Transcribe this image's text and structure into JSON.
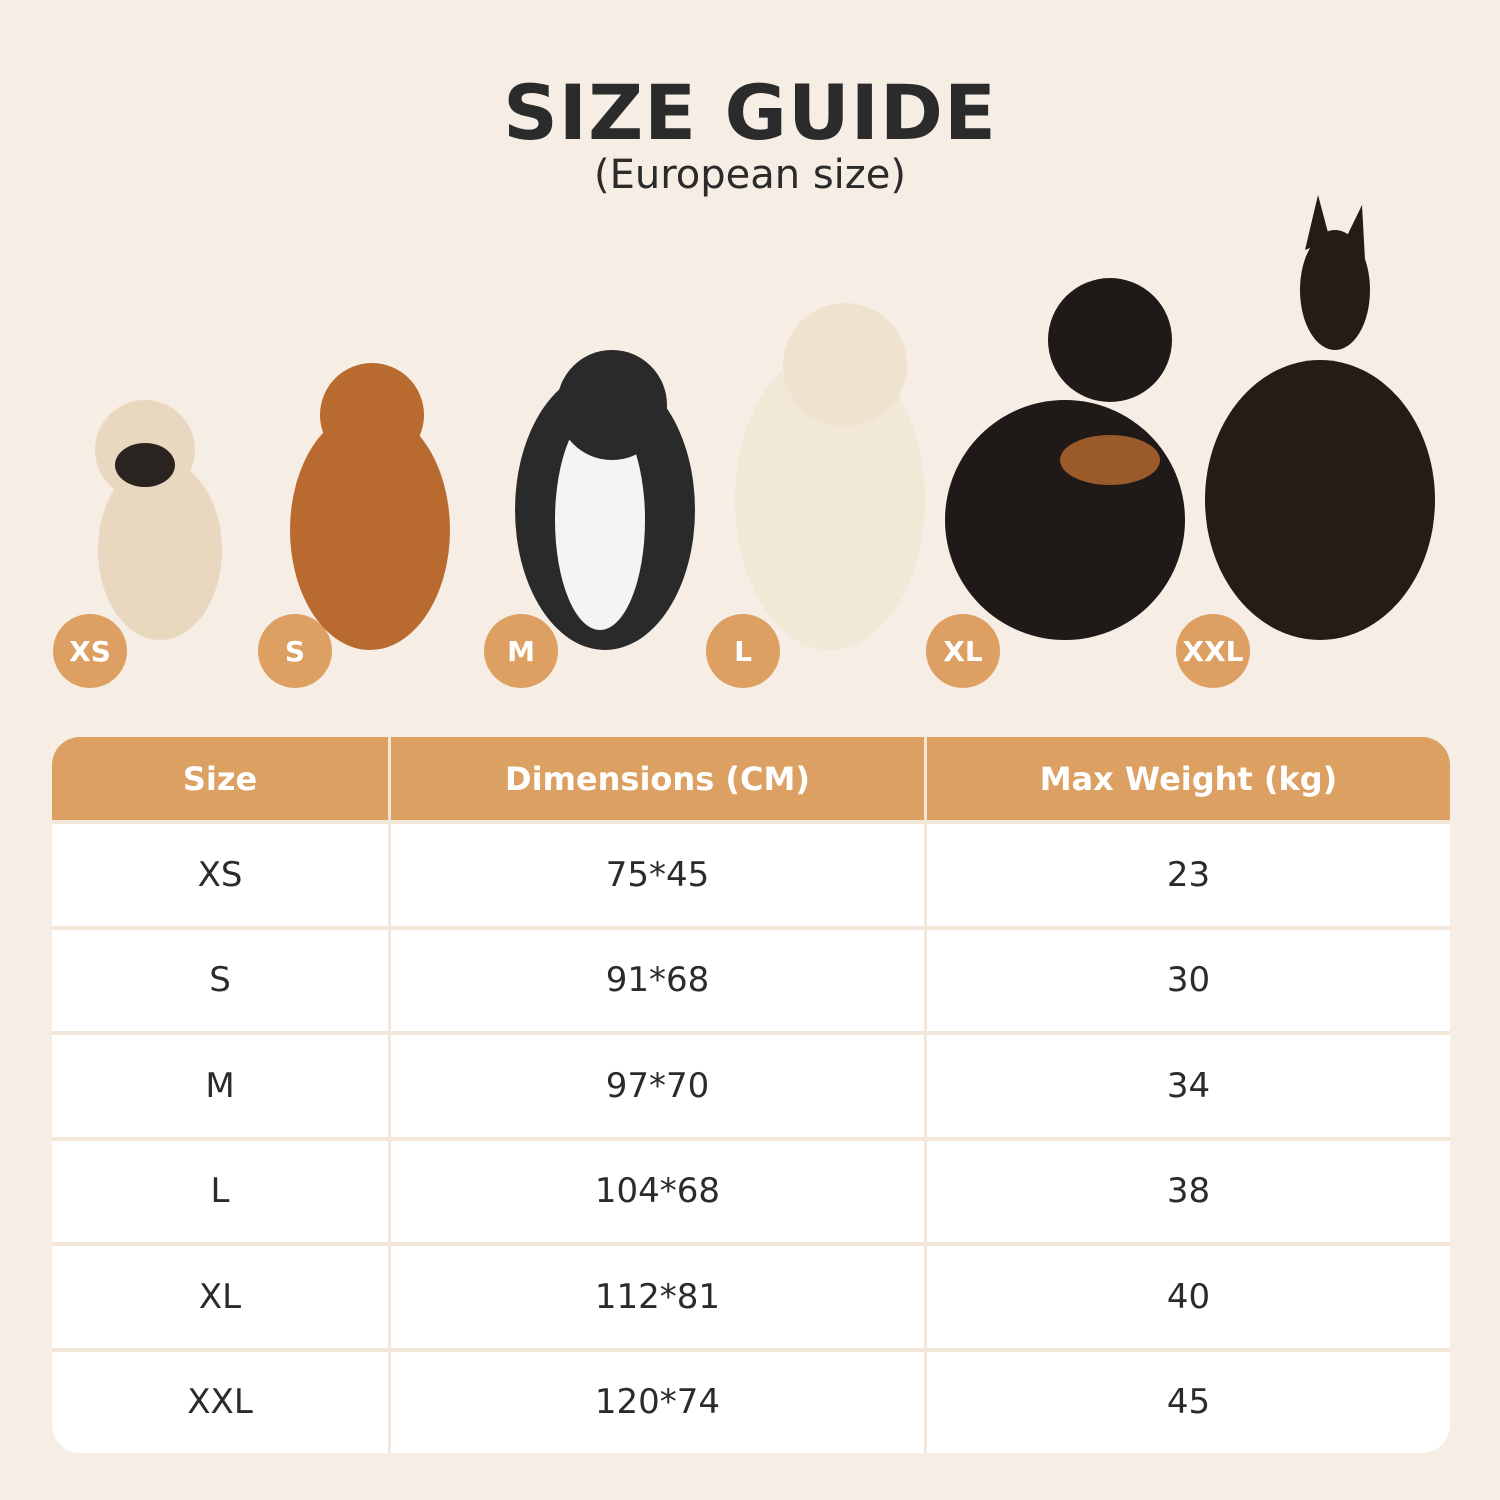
{
  "header": {
    "title": "SIZE GUIDE",
    "subtitle": "(European size)"
  },
  "badges": [
    "XS",
    "S",
    "M",
    "L",
    "XL",
    "XXL"
  ],
  "table": {
    "columns": [
      "Size",
      "Dimensions (CM)",
      "Max Weight (kg)"
    ],
    "rows": [
      [
        "XS",
        "75*45",
        23
      ],
      [
        "S",
        "91*68",
        30
      ],
      [
        "M",
        "97*70",
        34
      ],
      [
        "L",
        "104*68",
        38
      ],
      [
        "XL",
        "112*81",
        40
      ],
      [
        "XXL",
        "120*74",
        45
      ]
    ]
  }
}
